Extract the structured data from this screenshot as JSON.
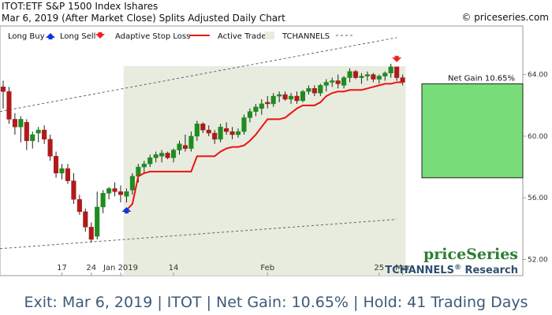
{
  "header": {
    "title": "ITOT:ETF S&P 1500 Index Ishares",
    "subtitle": "Mar 6, 2019 (After Market Close)  Splits Adjusted Daily Chart",
    "copyright": "© priceseries.com"
  },
  "legend": {
    "long_buy": "Long Buy",
    "long_sell": "Long Sell",
    "adaptive_stop": "Adaptive Stop Loss",
    "active_trade": "Active Trade",
    "tchannels": "TCHANNELS"
  },
  "branding": {
    "logo": "priceSeries",
    "research_prefix": "TCHANNELS",
    "research_mark": "®",
    "research_suffix": " Research"
  },
  "net_gain_label": "Net Gain 10.65%",
  "footer": "Exit: Mar 6, 2019 | ITOT | Net Gain: 10.65% | Hold: 41 Trading Days",
  "colors": {
    "up": "#1e8c1e",
    "down": "#b01a1a",
    "stop": "#ee1111",
    "trade_zone": "#e8ecdf",
    "gain_box": "#78dc78",
    "channel": "#556677",
    "buy_arrow": "#1133dd",
    "sell_arrow": "#ee2222"
  },
  "chart_data": {
    "type": "candlestick",
    "ylim": [
      51.0,
      67.0
    ],
    "y_ticks": [
      "52.00",
      "56.00",
      "60.00",
      "64.00"
    ],
    "x_ticks": [
      {
        "label": "17",
        "index": 10
      },
      {
        "label": "24",
        "index": 15
      },
      {
        "label": "Jan 2019",
        "index": 20
      },
      {
        "label": "14",
        "index": 29
      },
      {
        "label": "Feb",
        "index": 45
      },
      {
        "label": "25",
        "index": 64
      },
      {
        "label": "Mar",
        "index": 68
      }
    ],
    "candles": [
      {
        "o": 63.2,
        "h": 63.6,
        "l": 61.8,
        "c": 62.9
      },
      {
        "o": 62.9,
        "h": 63.2,
        "l": 60.8,
        "c": 61.1
      },
      {
        "o": 61.1,
        "h": 61.5,
        "l": 60.1,
        "c": 60.6
      },
      {
        "o": 60.6,
        "h": 61.3,
        "l": 59.6,
        "c": 61.1
      },
      {
        "o": 60.9,
        "h": 61.1,
        "l": 59.1,
        "c": 59.7
      },
      {
        "o": 59.7,
        "h": 60.3,
        "l": 59.2,
        "c": 60.1
      },
      {
        "o": 60.2,
        "h": 60.6,
        "l": 59.6,
        "c": 60.4
      },
      {
        "o": 60.4,
        "h": 60.7,
        "l": 59.5,
        "c": 59.8
      },
      {
        "o": 59.8,
        "h": 60.1,
        "l": 58.4,
        "c": 58.7
      },
      {
        "o": 58.7,
        "h": 59.0,
        "l": 57.3,
        "c": 57.6
      },
      {
        "o": 57.6,
        "h": 58.2,
        "l": 57.2,
        "c": 57.9
      },
      {
        "o": 57.9,
        "h": 58.2,
        "l": 56.9,
        "c": 57.1
      },
      {
        "o": 57.1,
        "h": 57.6,
        "l": 55.6,
        "c": 55.9
      },
      {
        "o": 55.9,
        "h": 56.2,
        "l": 54.9,
        "c": 55.1
      },
      {
        "o": 55.1,
        "h": 55.3,
        "l": 53.8,
        "c": 54.1
      },
      {
        "o": 54.1,
        "h": 54.4,
        "l": 53.1,
        "c": 53.3
      },
      {
        "o": 53.5,
        "h": 56.4,
        "l": 53.3,
        "c": 55.4
      },
      {
        "o": 55.4,
        "h": 56.5,
        "l": 55.0,
        "c": 56.3
      },
      {
        "o": 56.3,
        "h": 56.7,
        "l": 55.9,
        "c": 56.6
      },
      {
        "o": 56.6,
        "h": 57.0,
        "l": 56.1,
        "c": 56.4
      },
      {
        "o": 56.4,
        "h": 56.8,
        "l": 55.7,
        "c": 56.2
      },
      {
        "o": 56.1,
        "h": 56.6,
        "l": 55.7,
        "c": 56.4
      },
      {
        "o": 56.5,
        "h": 57.6,
        "l": 56.2,
        "c": 57.4
      },
      {
        "o": 57.4,
        "h": 58.2,
        "l": 57.0,
        "c": 58.0
      },
      {
        "o": 58.0,
        "h": 58.4,
        "l": 57.6,
        "c": 58.2
      },
      {
        "o": 58.2,
        "h": 58.8,
        "l": 58.0,
        "c": 58.6
      },
      {
        "o": 58.6,
        "h": 59.0,
        "l": 58.3,
        "c": 58.8
      },
      {
        "o": 58.7,
        "h": 59.1,
        "l": 58.3,
        "c": 58.9
      },
      {
        "o": 58.9,
        "h": 59.0,
        "l": 58.5,
        "c": 58.6
      },
      {
        "o": 58.6,
        "h": 59.2,
        "l": 58.3,
        "c": 59.1
      },
      {
        "o": 59.1,
        "h": 59.7,
        "l": 58.8,
        "c": 59.5
      },
      {
        "o": 59.4,
        "h": 60.1,
        "l": 59.0,
        "c": 59.2
      },
      {
        "o": 59.2,
        "h": 60.3,
        "l": 59.0,
        "c": 60.0
      },
      {
        "o": 60.0,
        "h": 61.0,
        "l": 59.7,
        "c": 60.8
      },
      {
        "o": 60.8,
        "h": 60.9,
        "l": 60.2,
        "c": 60.4
      },
      {
        "o": 60.4,
        "h": 60.7,
        "l": 60.0,
        "c": 60.2
      },
      {
        "o": 60.2,
        "h": 60.4,
        "l": 59.5,
        "c": 59.8
      },
      {
        "o": 59.8,
        "h": 60.8,
        "l": 59.6,
        "c": 60.6
      },
      {
        "o": 60.5,
        "h": 60.9,
        "l": 60.1,
        "c": 60.3
      },
      {
        "o": 60.3,
        "h": 60.6,
        "l": 59.8,
        "c": 60.1
      },
      {
        "o": 60.1,
        "h": 60.5,
        "l": 59.9,
        "c": 60.3
      },
      {
        "o": 60.3,
        "h": 61.4,
        "l": 60.1,
        "c": 61.2
      },
      {
        "o": 61.2,
        "h": 61.8,
        "l": 60.9,
        "c": 61.6
      },
      {
        "o": 61.6,
        "h": 62.1,
        "l": 61.3,
        "c": 61.9
      },
      {
        "o": 61.8,
        "h": 62.4,
        "l": 61.4,
        "c": 62.1
      },
      {
        "o": 62.2,
        "h": 62.6,
        "l": 61.8,
        "c": 62.1
      },
      {
        "o": 62.1,
        "h": 62.8,
        "l": 61.9,
        "c": 62.6
      },
      {
        "o": 62.6,
        "h": 62.9,
        "l": 62.2,
        "c": 62.7
      },
      {
        "o": 62.7,
        "h": 62.9,
        "l": 62.3,
        "c": 62.4
      },
      {
        "o": 62.4,
        "h": 62.8,
        "l": 62.1,
        "c": 62.6
      },
      {
        "o": 62.6,
        "h": 62.9,
        "l": 62.1,
        "c": 62.3
      },
      {
        "o": 62.3,
        "h": 63.0,
        "l": 62.2,
        "c": 62.9
      },
      {
        "o": 62.9,
        "h": 63.3,
        "l": 62.7,
        "c": 63.1
      },
      {
        "o": 63.1,
        "h": 63.3,
        "l": 62.6,
        "c": 62.8
      },
      {
        "o": 62.8,
        "h": 63.4,
        "l": 62.6,
        "c": 63.3
      },
      {
        "o": 63.3,
        "h": 63.7,
        "l": 62.9,
        "c": 63.5
      },
      {
        "o": 63.5,
        "h": 63.8,
        "l": 63.2,
        "c": 63.6
      },
      {
        "o": 63.6,
        "h": 64.0,
        "l": 63.1,
        "c": 63.4
      },
      {
        "o": 63.3,
        "h": 63.9,
        "l": 63.1,
        "c": 63.8
      },
      {
        "o": 63.8,
        "h": 64.4,
        "l": 63.5,
        "c": 64.2
      },
      {
        "o": 64.2,
        "h": 64.3,
        "l": 63.7,
        "c": 63.8
      },
      {
        "o": 63.8,
        "h": 64.1,
        "l": 63.4,
        "c": 63.9
      },
      {
        "o": 63.9,
        "h": 64.2,
        "l": 63.6,
        "c": 64.0
      },
      {
        "o": 64.0,
        "h": 64.1,
        "l": 63.5,
        "c": 63.7
      },
      {
        "o": 63.7,
        "h": 64.0,
        "l": 63.4,
        "c": 63.9
      },
      {
        "o": 63.9,
        "h": 64.2,
        "l": 63.6,
        "c": 64.1
      },
      {
        "o": 64.1,
        "h": 64.7,
        "l": 63.8,
        "c": 64.5
      },
      {
        "o": 64.5,
        "h": 64.5,
        "l": 63.6,
        "c": 63.8
      },
      {
        "o": 63.8,
        "h": 64.0,
        "l": 63.3,
        "c": 63.5
      }
    ],
    "stop_line": [
      {
        "i": 21,
        "v": 55.2
      },
      {
        "i": 22,
        "v": 55.6
      },
      {
        "i": 23,
        "v": 57.4
      },
      {
        "i": 24,
        "v": 57.6
      },
      {
        "i": 25,
        "v": 57.7
      },
      {
        "i": 26,
        "v": 57.7
      },
      {
        "i": 27,
        "v": 57.7
      },
      {
        "i": 28,
        "v": 57.7
      },
      {
        "i": 29,
        "v": 57.7
      },
      {
        "i": 30,
        "v": 57.7
      },
      {
        "i": 31,
        "v": 57.7
      },
      {
        "i": 32,
        "v": 57.7
      },
      {
        "i": 33,
        "v": 58.7
      },
      {
        "i": 34,
        "v": 58.7
      },
      {
        "i": 35,
        "v": 58.7
      },
      {
        "i": 36,
        "v": 58.7
      },
      {
        "i": 37,
        "v": 59.0
      },
      {
        "i": 38,
        "v": 59.2
      },
      {
        "i": 39,
        "v": 59.3
      },
      {
        "i": 40,
        "v": 59.3
      },
      {
        "i": 41,
        "v": 59.4
      },
      {
        "i": 42,
        "v": 59.7
      },
      {
        "i": 43,
        "v": 60.1
      },
      {
        "i": 44,
        "v": 60.6
      },
      {
        "i": 45,
        "v": 61.1
      },
      {
        "i": 46,
        "v": 61.1
      },
      {
        "i": 47,
        "v": 61.1
      },
      {
        "i": 48,
        "v": 61.2
      },
      {
        "i": 49,
        "v": 61.5
      },
      {
        "i": 50,
        "v": 61.8
      },
      {
        "i": 51,
        "v": 62.0
      },
      {
        "i": 52,
        "v": 62.0
      },
      {
        "i": 53,
        "v": 62.0
      },
      {
        "i": 54,
        "v": 62.2
      },
      {
        "i": 55,
        "v": 62.6
      },
      {
        "i": 56,
        "v": 62.8
      },
      {
        "i": 57,
        "v": 62.9
      },
      {
        "i": 58,
        "v": 62.9
      },
      {
        "i": 59,
        "v": 63.0
      },
      {
        "i": 60,
        "v": 63.0
      },
      {
        "i": 61,
        "v": 63.0
      },
      {
        "i": 62,
        "v": 63.1
      },
      {
        "i": 63,
        "v": 63.2
      },
      {
        "i": 64,
        "v": 63.3
      },
      {
        "i": 65,
        "v": 63.4
      },
      {
        "i": 66,
        "v": 63.4
      },
      {
        "i": 67,
        "v": 63.5
      },
      {
        "i": 68,
        "v": 63.5
      }
    ],
    "channel_upper": [
      {
        "i": 0,
        "v": 61.6
      },
      {
        "i": 67,
        "v": 66.4
      }
    ],
    "channel_lower": [
      {
        "i": 0,
        "v": 52.7
      },
      {
        "i": 67,
        "v": 54.6
      }
    ],
    "trade_zone": {
      "start_index": 21,
      "end_index": 68
    },
    "buy_signal_index": 21,
    "sell_signal_index": 67,
    "gain_box": {
      "from": 57.3,
      "to": 63.4
    }
  }
}
